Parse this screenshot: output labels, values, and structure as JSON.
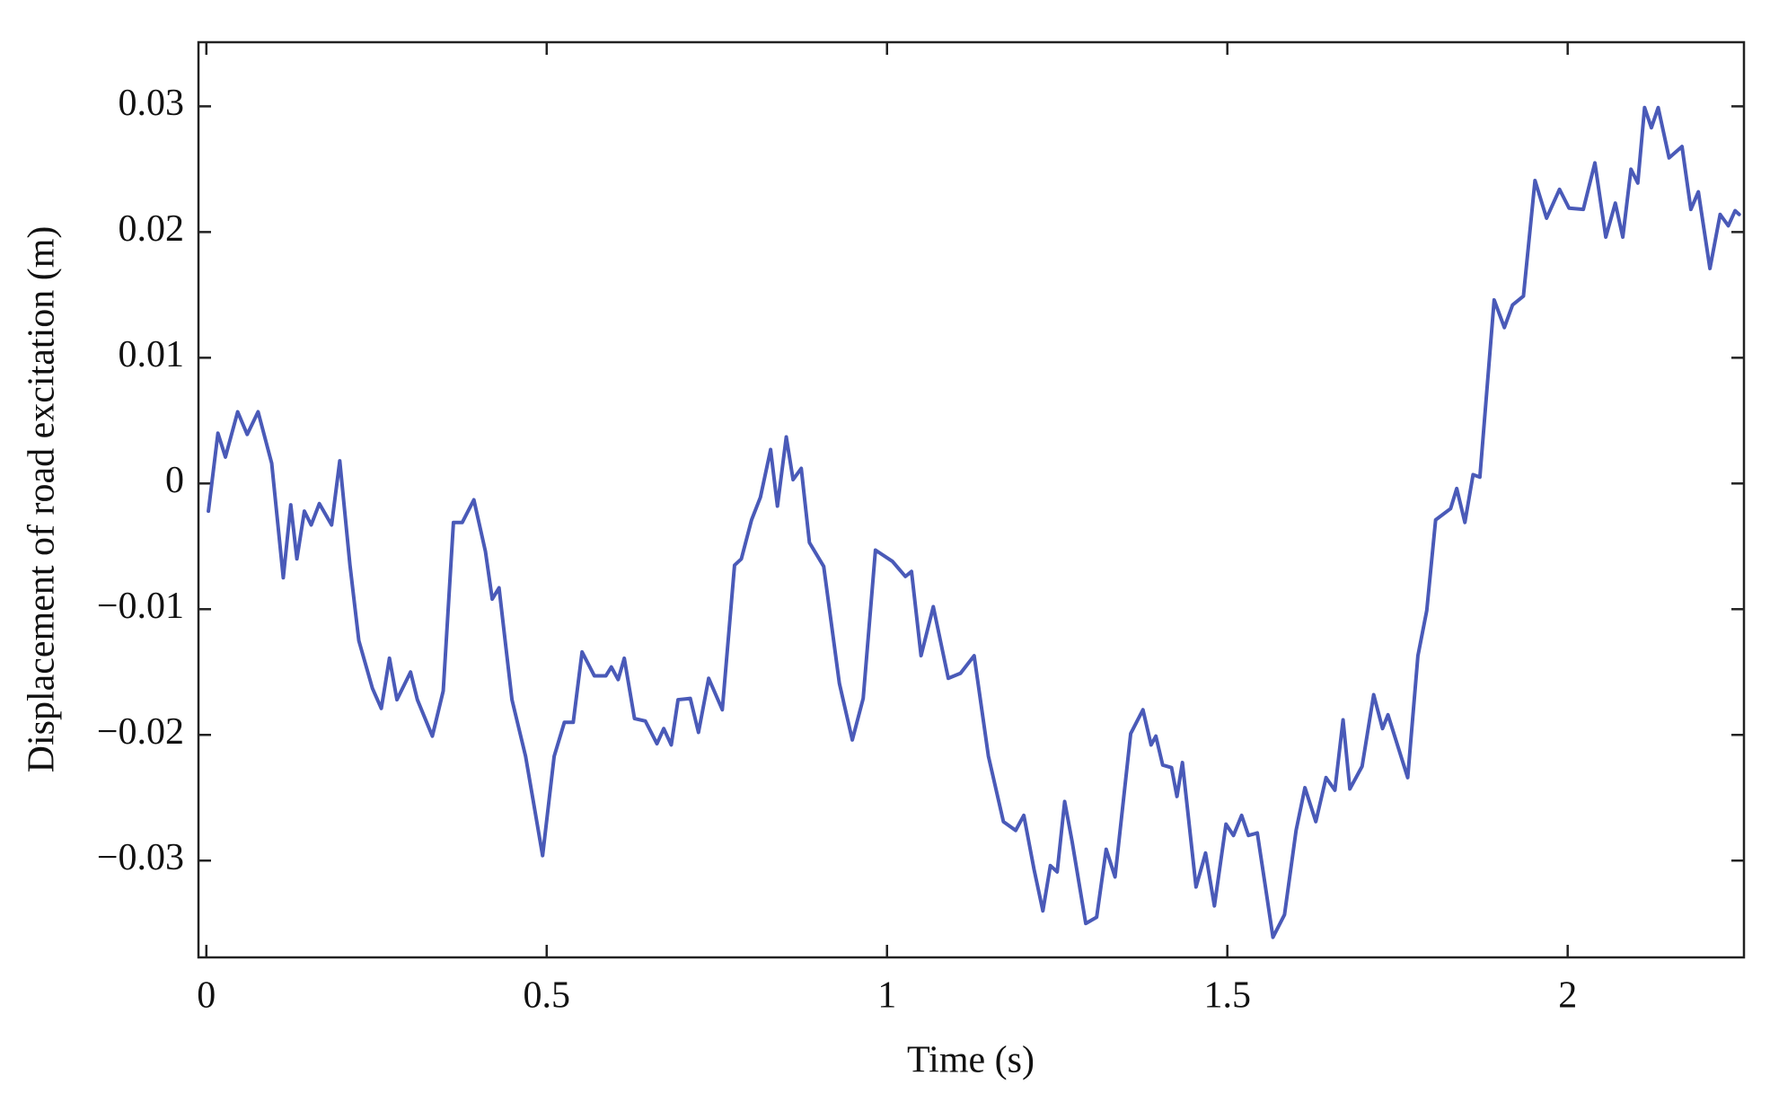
{
  "chart_data": {
    "type": "line",
    "xlabel": "Time (s)",
    "ylabel": "Displacement of road excitation (m)",
    "color": "#4a5ab8",
    "xlim": [
      -0.0116,
      2.259
    ],
    "ylim": [
      -0.0377,
      0.0351
    ],
    "xticks": [
      0,
      0.5,
      1,
      1.5,
      2
    ],
    "yticks": [
      {
        "value": -0.03,
        "label": "−0.03"
      },
      {
        "value": -0.02,
        "label": "−0.02"
      },
      {
        "value": -0.01,
        "label": "−0.01"
      },
      0,
      0.01,
      0.02,
      0.03
    ],
    "x": [
      0.003,
      0.017,
      0.028,
      0.046,
      0.06,
      0.076,
      0.096,
      0.113,
      0.124,
      0.133,
      0.144,
      0.154,
      0.166,
      0.184,
      0.196,
      0.211,
      0.224,
      0.244,
      0.257,
      0.269,
      0.28,
      0.3,
      0.31,
      0.332,
      0.348,
      0.363,
      0.376,
      0.393,
      0.41,
      0.42,
      0.43,
      0.449,
      0.469,
      0.494,
      0.511,
      0.526,
      0.539,
      0.552,
      0.57,
      0.587,
      0.595,
      0.605,
      0.614,
      0.629,
      0.645,
      0.662,
      0.672,
      0.683,
      0.693,
      0.711,
      0.723,
      0.738,
      0.758,
      0.776,
      0.786,
      0.801,
      0.814,
      0.829,
      0.839,
      0.852,
      0.862,
      0.874,
      0.886,
      0.907,
      0.93,
      0.949,
      0.965,
      0.983,
      1.008,
      1.027,
      1.036,
      1.05,
      1.068,
      1.09,
      1.108,
      1.128,
      1.149,
      1.171,
      1.189,
      1.201,
      1.216,
      1.229,
      1.24,
      1.25,
      1.261,
      1.272,
      1.292,
      1.308,
      1.322,
      1.335,
      1.358,
      1.376,
      1.388,
      1.395,
      1.405,
      1.418,
      1.426,
      1.434,
      1.454,
      1.468,
      1.481,
      1.498,
      1.509,
      1.521,
      1.531,
      1.544,
      1.556,
      1.567,
      1.584,
      1.601,
      1.614,
      1.63,
      1.645,
      1.658,
      1.67,
      1.68,
      1.698,
      1.715,
      1.728,
      1.736,
      1.765,
      1.78,
      1.793,
      1.806,
      1.828,
      1.837,
      1.849,
      1.861,
      1.871,
      1.892,
      1.907,
      1.919,
      1.935,
      1.952,
      1.969,
      1.988,
      2.002,
      2.023,
      2.04,
      2.056,
      2.07,
      2.081,
      2.093,
      2.103,
      2.113,
      2.123,
      2.133,
      2.149,
      2.168,
      2.181,
      2.192,
      2.209,
      2.224,
      2.236,
      2.246,
      2.252
    ],
    "values": [
      -0.0022,
      0.004,
      0.0021,
      0.0057,
      0.0039,
      0.0057,
      0.0016,
      -0.0075,
      -0.0017,
      -0.006,
      -0.0022,
      -0.0033,
      -0.0016,
      -0.0033,
      0.0018,
      -0.0065,
      -0.0125,
      -0.0163,
      -0.0179,
      -0.0139,
      -0.0172,
      -0.015,
      -0.0172,
      -0.0201,
      -0.0165,
      -0.0031,
      -0.0031,
      -0.0013,
      -0.0054,
      -0.0092,
      -0.0083,
      -0.0172,
      -0.0217,
      -0.0296,
      -0.0217,
      -0.019,
      -0.019,
      -0.0134,
      -0.0153,
      -0.0153,
      -0.0146,
      -0.0156,
      -0.0139,
      -0.0187,
      -0.0189,
      -0.0207,
      -0.0195,
      -0.0208,
      -0.0172,
      -0.0171,
      -0.0198,
      -0.0155,
      -0.018,
      -0.0065,
      -0.006,
      -0.0029,
      -0.0011,
      0.0027,
      -0.0018,
      0.0037,
      0.0003,
      0.0012,
      -0.0047,
      -0.0066,
      -0.0159,
      -0.0204,
      -0.0171,
      -0.0053,
      -0.0062,
      -0.0074,
      -0.007,
      -0.0137,
      -0.0098,
      -0.0155,
      -0.0151,
      -0.0137,
      -0.0217,
      -0.0269,
      -0.0276,
      -0.0264,
      -0.0307,
      -0.034,
      -0.0304,
      -0.0309,
      -0.0253,
      -0.0285,
      -0.035,
      -0.0345,
      -0.0291,
      -0.0313,
      -0.0199,
      -0.018,
      -0.0208,
      -0.0201,
      -0.0224,
      -0.0226,
      -0.0249,
      -0.0222,
      -0.0321,
      -0.0294,
      -0.0336,
      -0.0271,
      -0.028,
      -0.0264,
      -0.028,
      -0.0278,
      -0.0321,
      -0.0361,
      -0.0343,
      -0.0276,
      -0.0242,
      -0.0269,
      -0.0234,
      -0.0244,
      -0.0188,
      -0.0243,
      -0.0225,
      -0.0168,
      -0.0195,
      -0.0184,
      -0.0234,
      -0.0137,
      -0.0101,
      -0.0029,
      -0.002,
      -0.0004,
      -0.0031,
      0.0007,
      0.0005,
      0.0146,
      0.0124,
      0.0142,
      0.0149,
      0.0241,
      0.0211,
      0.0234,
      0.0219,
      0.0218,
      0.0255,
      0.0196,
      0.0223,
      0.0196,
      0.025,
      0.0239,
      0.0299,
      0.0283,
      0.0299,
      0.0259,
      0.0268,
      0.0218,
      0.0232,
      0.0171,
      0.0214,
      0.0205,
      0.0217,
      0.0214
    ]
  }
}
